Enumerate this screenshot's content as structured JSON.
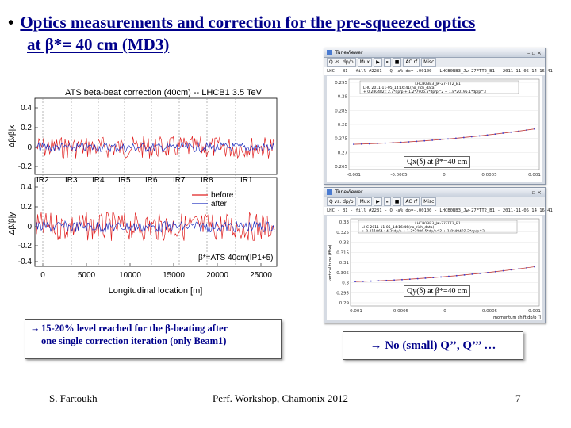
{
  "slide": {
    "title_line1": "Optics measurements and correction for the pre-squeezed optics",
    "title_line2": "at β*= 40 cm (MD3)",
    "bullet_left_line1": "15-20% level reached for the β-beating after",
    "bullet_left_line2": "one single correction iteration  (only Beam1)",
    "bullet_right": "No (small) Q’’, Q’’’ …",
    "arrow": "→",
    "footer_author": "S. Fartoukh",
    "footer_event": "Perf. Workshop, Chamonix 2012",
    "footer_page": "7"
  },
  "colors": {
    "title": "#00008b",
    "before": "#e02020",
    "after": "#2030c0",
    "tune_line": "#c04040"
  },
  "beta_plot": {
    "title": "ATS beta-beat correction (40cm) -- LHCB1 3.5 TeV",
    "ylabel_top": "Δβ/β|x",
    "ylabel_bottom": "Δβ/β|y",
    "xlabel": "Longitudinal location [m]",
    "ir_labels": [
      "IR2",
      "IR3",
      "IR4",
      "IR5",
      "IR6",
      "IR7",
      "IR8",
      "IR1"
    ],
    "top_yticks": [
      "0.4",
      "0.2",
      "0",
      "-0.2"
    ],
    "bottom_yticks": [
      "0.4",
      "0.2",
      "0",
      "-0.2",
      "-0.4"
    ],
    "xticks": [
      "0",
      "5000",
      "10000",
      "15000",
      "20000",
      "25000"
    ],
    "legend_before": "before",
    "legend_after": "after",
    "annotation": "β*=ATS 40cm(IP1+5)"
  },
  "window_x": {
    "title": "TuneViewer",
    "toolbar": [
      "Q vs. dp/p",
      "Mux",
      "▶",
      "⏸",
      "■",
      "AC rf",
      "Misc"
    ],
    "info": "LHC - B1 - fill #2281 - Q -a% do=-.00100 - LHCB0BB3_Jw-27FTT2_B1 - 2011-11-05 14:16:41",
    "legend_title": "LHCB0BB3_Jw-27FTT2_B1",
    "legend_line1": "LHC 2011-11-05_14:16:41(no_rich_data)",
    "legend_line2": "+ 0.280482 : 2.7*dp/p + 1.2*7906.5*dp/p^2 + 1.8*20195.1*dp/p^3",
    "yticks": [
      "0.295",
      "0.29",
      "0.285",
      "0.28",
      "0.275",
      "0.27",
      "0.265"
    ],
    "xticks": [
      "-0.001",
      "-0.0005",
      "0",
      "0.0005",
      "0.001"
    ],
    "caption": "Qx(δ) at β*=40 cm"
  },
  "window_y": {
    "title": "TuneViewer",
    "toolbar": [
      "Q vs. dp/p",
      "Mux",
      "▶",
      "⏸",
      "■",
      "AC rf",
      "Misc"
    ],
    "info": "LHC - B1 - fill #2281 - Q -a% do=-.00100 - LHCB0BB3_Jw-27FTT2_B1 - 2011-11-05 14:16:41",
    "legend_title": "LHCB0BB3_Jw-27FTT2_B1",
    "legend_line1": "LHC 2011-11-05_14:16:46(no_rich_data)",
    "legend_line2": "+ 0.311864 : 4.3*dp/p + 1.2*7906.5*dp/p^2 + 1.8*49422.2*dp/p^3",
    "ylabel": "vertical tune (fftw)",
    "xlabel": "momentum shift dp/p []",
    "yticks": [
      "0.33",
      "0.325",
      "0.32",
      "0.315",
      "0.31",
      "0.305",
      "0.3",
      "0.295",
      "0.29"
    ],
    "xticks": [
      "-0.001",
      "-0.0005",
      "0",
      "0.0005",
      "0.001"
    ],
    "caption": "Qy(δ) at β*=40 cm"
  }
}
